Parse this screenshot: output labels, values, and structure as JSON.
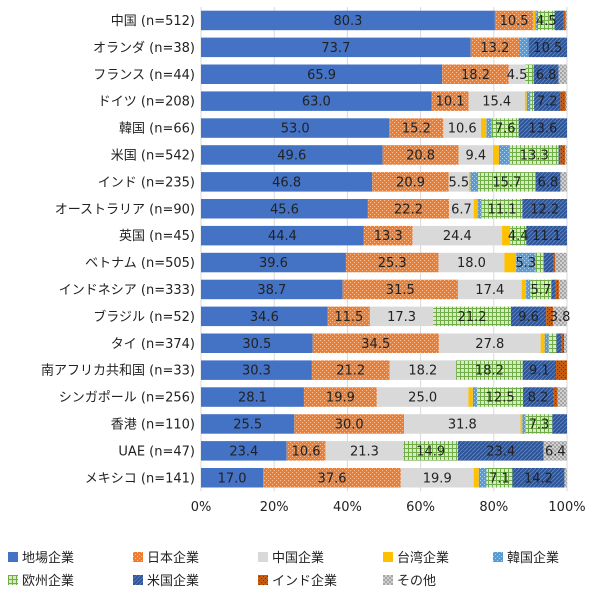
{
  "chart_data": {
    "type": "bar",
    "orientation": "horizontal",
    "stacked": "percent",
    "categories": [
      "中国 (n=512)",
      "オランダ (n=38)",
      "フランス (n=44)",
      "ドイツ (n=208)",
      "韓国 (n=66)",
      "米国 (n=542)",
      "インド (n=235)",
      "オーストラリア (n=90)",
      "英国 (n=45)",
      "ベトナム (n=505)",
      "インドネシア (n=333)",
      "ブラジル (n=52)",
      "タイ (n=374)",
      "南アフリカ共和国 (n=33)",
      "シンガポール (n=256)",
      "香港 (n=110)",
      "UAE (n=47)",
      "メキシコ (n=141)"
    ],
    "series": [
      {
        "name": "地場企業",
        "color": "#4472C4",
        "pattern": "solid",
        "values": [
          80.3,
          73.7,
          65.9,
          63.0,
          53.0,
          49.6,
          46.8,
          45.6,
          44.4,
          39.6,
          38.7,
          34.6,
          30.5,
          30.3,
          28.1,
          25.5,
          23.4,
          17.0
        ]
      },
      {
        "name": "日本企業",
        "color": "#ED7D31",
        "pattern": "dots",
        "values": [
          10.5,
          13.2,
          18.2,
          10.1,
          15.2,
          20.8,
          20.9,
          22.2,
          13.3,
          25.3,
          31.5,
          11.5,
          34.5,
          21.2,
          19.9,
          30.0,
          10.6,
          37.6
        ]
      },
      {
        "name": "中国企業",
        "color": "#D9D9D9",
        "pattern": "solid",
        "values": [
          0,
          0,
          4.5,
          15.4,
          10.6,
          9.4,
          5.5,
          6.7,
          24.4,
          18.0,
          17.4,
          17.3,
          27.8,
          18.2,
          25.0,
          31.8,
          21.3,
          19.9
        ]
      },
      {
        "name": "台湾企業",
        "color": "#FFC000",
        "pattern": "solid",
        "values": [
          0.6,
          0,
          0,
          0.5,
          1.5,
          1.6,
          0.4,
          1.1,
          2.2,
          3.2,
          1.2,
          0,
          1.1,
          0,
          1.2,
          0.5,
          0,
          1.4
        ]
      },
      {
        "name": "韓国企業",
        "color": "#5B9BD5",
        "pattern": "dots",
        "values": [
          0.7,
          2.6,
          0,
          1.0,
          1.5,
          3.0,
          2.1,
          1.1,
          0,
          5.3,
          1.2,
          0,
          1.1,
          0,
          1.2,
          0.9,
          0,
          2.1
        ]
      },
      {
        "name": "欧州企業",
        "color": "#70AD47",
        "pattern": "grid",
        "values": [
          4.5,
          0,
          2.3,
          1.0,
          7.6,
          13.3,
          15.7,
          11.1,
          4.4,
          2.2,
          5.7,
          21.2,
          2.1,
          18.2,
          12.5,
          7.3,
          14.9,
          7.1
        ]
      },
      {
        "name": "米国企業",
        "color": "#2F5597",
        "pattern": "diag",
        "values": [
          2.5,
          10.5,
          6.8,
          7.2,
          13.6,
          0.5,
          6.8,
          12.2,
          11.1,
          2.6,
          1.2,
          9.6,
          1.3,
          9.1,
          8.2,
          4.0,
          23.4,
          14.2
        ]
      },
      {
        "name": "インド企業",
        "color": "#C55A11",
        "pattern": "dense",
        "values": [
          0.5,
          0,
          0,
          1.4,
          0,
          1.3,
          0,
          0,
          0,
          0.6,
          0.9,
          1.9,
          0.8,
          3.0,
          1.2,
          0,
          0,
          0
        ]
      },
      {
        "name": "その他",
        "color": "#A5A5A5",
        "pattern": "checker",
        "values": [
          0.4,
          0,
          2.3,
          0.4,
          0,
          0.5,
          1.8,
          0,
          0,
          3.2,
          2.2,
          3.8,
          0.8,
          0,
          2.6,
          0,
          6.4,
          0.7
        ]
      }
    ],
    "labels": [
      [
        "80.3",
        "10.5",
        "",
        "",
        "",
        "4.5",
        "",
        "",
        ""
      ],
      [
        "73.7",
        "13.2",
        "",
        "",
        "",
        "",
        "10.5",
        "",
        ""
      ],
      [
        "65.9",
        "18.2",
        "4.5",
        "",
        "",
        "",
        "6.8",
        "",
        ""
      ],
      [
        "63.0",
        "10.1",
        "15.4",
        "",
        "",
        "",
        "7.2",
        "",
        ""
      ],
      [
        "53.0",
        "15.2",
        "10.6",
        "",
        "",
        "7.6",
        "13.6",
        "",
        ""
      ],
      [
        "49.6",
        "20.8",
        "9.4",
        "",
        "",
        "13.3",
        "",
        "",
        ""
      ],
      [
        "46.8",
        "20.9",
        "5.5",
        "",
        "",
        "15.7",
        "6.8",
        "",
        ""
      ],
      [
        "45.6",
        "22.2",
        "6.7",
        "",
        "",
        "11.1",
        "12.2",
        "",
        ""
      ],
      [
        "44.4",
        "13.3",
        "24.4",
        "",
        "",
        "4.4",
        "11.1",
        "",
        ""
      ],
      [
        "39.6",
        "25.3",
        "18.0",
        "",
        "5.3",
        "",
        "",
        "",
        ""
      ],
      [
        "38.7",
        "31.5",
        "17.4",
        "",
        "",
        "5.7",
        "",
        "",
        ""
      ],
      [
        "34.6",
        "11.5",
        "17.3",
        "",
        "",
        "21.2",
        "9.6",
        "",
        "3.8"
      ],
      [
        "30.5",
        "34.5",
        "27.8",
        "",
        "",
        "",
        "",
        "",
        ""
      ],
      [
        "30.3",
        "21.2",
        "18.2",
        "",
        "",
        "18.2",
        "9.1",
        "",
        ""
      ],
      [
        "28.1",
        "19.9",
        "25.0",
        "",
        "",
        "12.5",
        "8.2",
        "",
        ""
      ],
      [
        "25.5",
        "30.0",
        "31.8",
        "",
        "",
        "7.3",
        "",
        "",
        ""
      ],
      [
        "23.4",
        "10.6",
        "21.3",
        "",
        "",
        "14.9",
        "23.4",
        "",
        "6.4"
      ],
      [
        "17.0",
        "37.6",
        "19.9",
        "",
        "",
        "7.1",
        "14.2",
        "",
        ""
      ]
    ],
    "x_ticks": [
      "0%",
      "20%",
      "40%",
      "60%",
      "80%",
      "100%"
    ],
    "xlim": [
      0,
      100
    ],
    "grid": true,
    "legend_position": "bottom",
    "title": "",
    "xlabel": "",
    "ylabel": ""
  }
}
